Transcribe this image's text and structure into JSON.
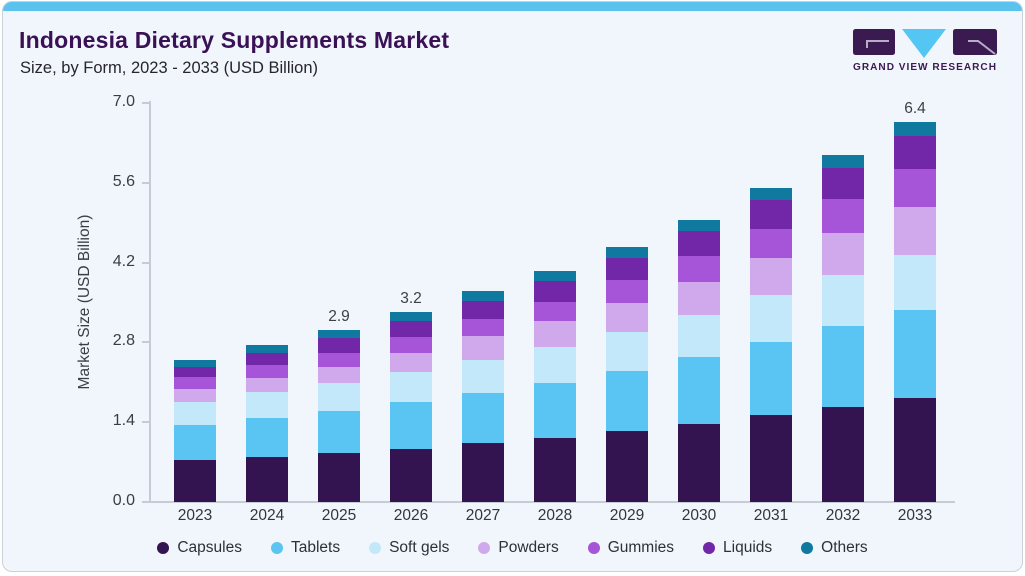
{
  "page": {
    "title": "Indonesia Dietary Supplements Market",
    "subtitle": "Size, by Form, 2023 - 2033 (USD Billion)",
    "accent_color": "#5bc2ee",
    "card_bg": "#f0f6fb"
  },
  "logo": {
    "text": "GRAND VIEW RESEARCH",
    "dark_color": "#3b1a52",
    "blue_color": "#54c6f3"
  },
  "chart_data": {
    "type": "bar",
    "stacked": true,
    "title": "Indonesia Dietary Supplements Market Size, by Form, 2023 - 2033 (USD Billion)",
    "xlabel": "",
    "ylabel": "Market Size (USD Billion)",
    "categories": [
      "2023",
      "2024",
      "2025",
      "2026",
      "2027",
      "2028",
      "2029",
      "2030",
      "2031",
      "2032",
      "2033"
    ],
    "series": [
      {
        "name": "Capsules",
        "color": "#341450",
        "values": [
          0.7,
          0.76,
          0.82,
          0.9,
          0.99,
          1.08,
          1.19,
          1.31,
          1.46,
          1.61,
          1.76
        ]
      },
      {
        "name": "Tablets",
        "color": "#5ac5f2",
        "values": [
          0.6,
          0.66,
          0.71,
          0.78,
          0.85,
          0.93,
          1.02,
          1.13,
          1.24,
          1.36,
          1.48
        ]
      },
      {
        "name": "Soft gels",
        "color": "#c3e8fa",
        "values": [
          0.39,
          0.43,
          0.47,
          0.51,
          0.56,
          0.6,
          0.65,
          0.71,
          0.79,
          0.86,
          0.93
        ]
      },
      {
        "name": "Powders",
        "color": "#d0a9ec",
        "values": [
          0.21,
          0.24,
          0.28,
          0.33,
          0.4,
          0.44,
          0.5,
          0.56,
          0.63,
          0.71,
          0.8
        ]
      },
      {
        "name": "Gummies",
        "color": "#a655d8",
        "values": [
          0.2,
          0.22,
          0.24,
          0.27,
          0.29,
          0.33,
          0.38,
          0.43,
          0.49,
          0.57,
          0.65
        ]
      },
      {
        "name": "Liquids",
        "color": "#7226a8",
        "values": [
          0.18,
          0.21,
          0.24,
          0.26,
          0.3,
          0.35,
          0.38,
          0.43,
          0.48,
          0.53,
          0.56
        ]
      },
      {
        "name": "Others",
        "color": "#10799f",
        "values": [
          0.12,
          0.13,
          0.14,
          0.15,
          0.16,
          0.17,
          0.18,
          0.18,
          0.21,
          0.21,
          0.22
        ]
      }
    ],
    "totals": [
      2.4,
      2.65,
      2.9,
      3.2,
      3.55,
      3.9,
      4.3,
      4.75,
      5.3,
      5.85,
      6.4
    ],
    "total_labels": [
      "",
      "",
      "2.9",
      "3.2",
      "",
      "",
      "",
      "",
      "",
      "",
      "6.4"
    ],
    "ylim": [
      0,
      7
    ],
    "yticks": [
      "0.0",
      "1.4",
      "2.8",
      "4.2",
      "5.6",
      "7.0"
    ],
    "grid": false,
    "legend_position": "bottom"
  }
}
